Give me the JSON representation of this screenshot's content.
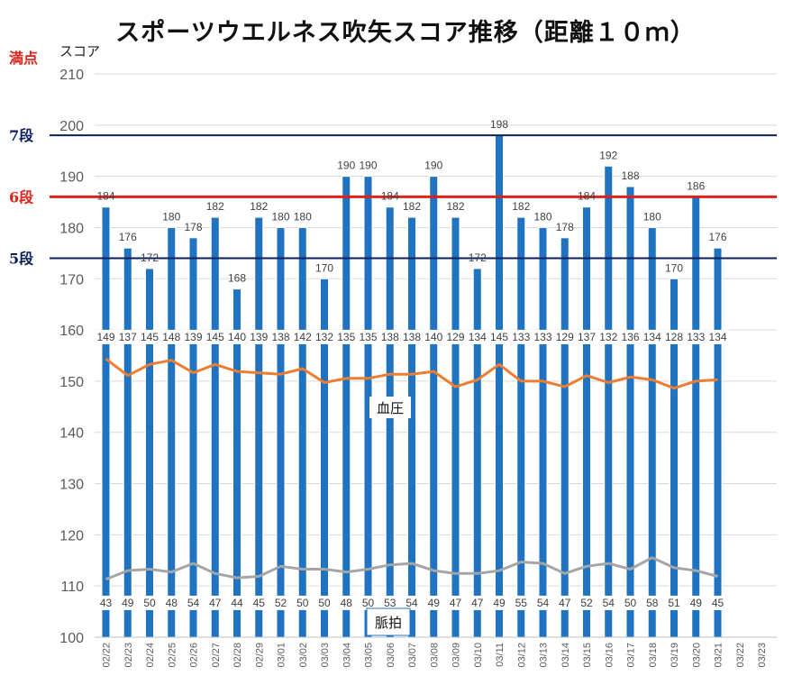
{
  "chart_data": {
    "type": "bar",
    "title": "スポーツウエルネス吹矢スコア推移（距離１０ｍ）",
    "ylabel": "スコア",
    "ylim": [
      100,
      210
    ],
    "yticks": [
      100,
      110,
      120,
      130,
      140,
      150,
      160,
      170,
      180,
      190,
      200,
      210
    ],
    "grid": true,
    "categories": [
      "02/22",
      "02/23",
      "02/24",
      "02/25",
      "02/26",
      "02/27",
      "02/28",
      "02/29",
      "03/01",
      "03/02",
      "03/03",
      "03/04",
      "03/05",
      "03/06",
      "03/07",
      "03/08",
      "03/09",
      "03/10",
      "03/11",
      "03/12",
      "03/13",
      "03/14",
      "03/15",
      "03/16",
      "03/17",
      "03/18",
      "03/19",
      "03/20",
      "03/21",
      "03/22",
      "03/23"
    ],
    "series": [
      {
        "values": [
          184,
          176,
          172,
          180,
          178,
          182,
          168,
          182,
          180,
          180,
          170,
          190,
          190,
          184,
          182,
          190,
          182,
          172,
          198,
          182,
          180,
          178,
          184,
          192,
          188,
          180,
          170,
          186,
          176,
          null,
          null
        ],
        "color": "#1f73c1"
      },
      {
        "name": "血圧",
        "values": [
          149,
          137,
          145,
          148,
          139,
          145,
          140,
          139,
          138,
          142,
          132,
          135,
          135,
          138,
          138,
          140,
          129,
          134,
          145,
          133,
          133,
          129,
          137,
          132,
          136,
          134,
          128,
          133,
          134,
          null,
          null
        ],
        "color": "#ed7d31"
      },
      {
        "name": "脈拍",
        "values": [
          43,
          49,
          50,
          48,
          54,
          47,
          44,
          45,
          52,
          50,
          50,
          48,
          50,
          53,
          54,
          49,
          47,
          47,
          49,
          55,
          54,
          47,
          52,
          54,
          50,
          58,
          51,
          49,
          45,
          null,
          null
        ],
        "color": "#a5a5a5"
      }
    ],
    "reference_lines": [
      {
        "label": "満点",
        "color": "#e0211a"
      },
      {
        "label": "7段",
        "value": 198,
        "color": "#0d1f5c"
      },
      {
        "label": "6段",
        "value": 186,
        "color": "#e0211a"
      },
      {
        "label": "5段",
        "value": 174,
        "color": "#0d1f5c"
      }
    ]
  }
}
